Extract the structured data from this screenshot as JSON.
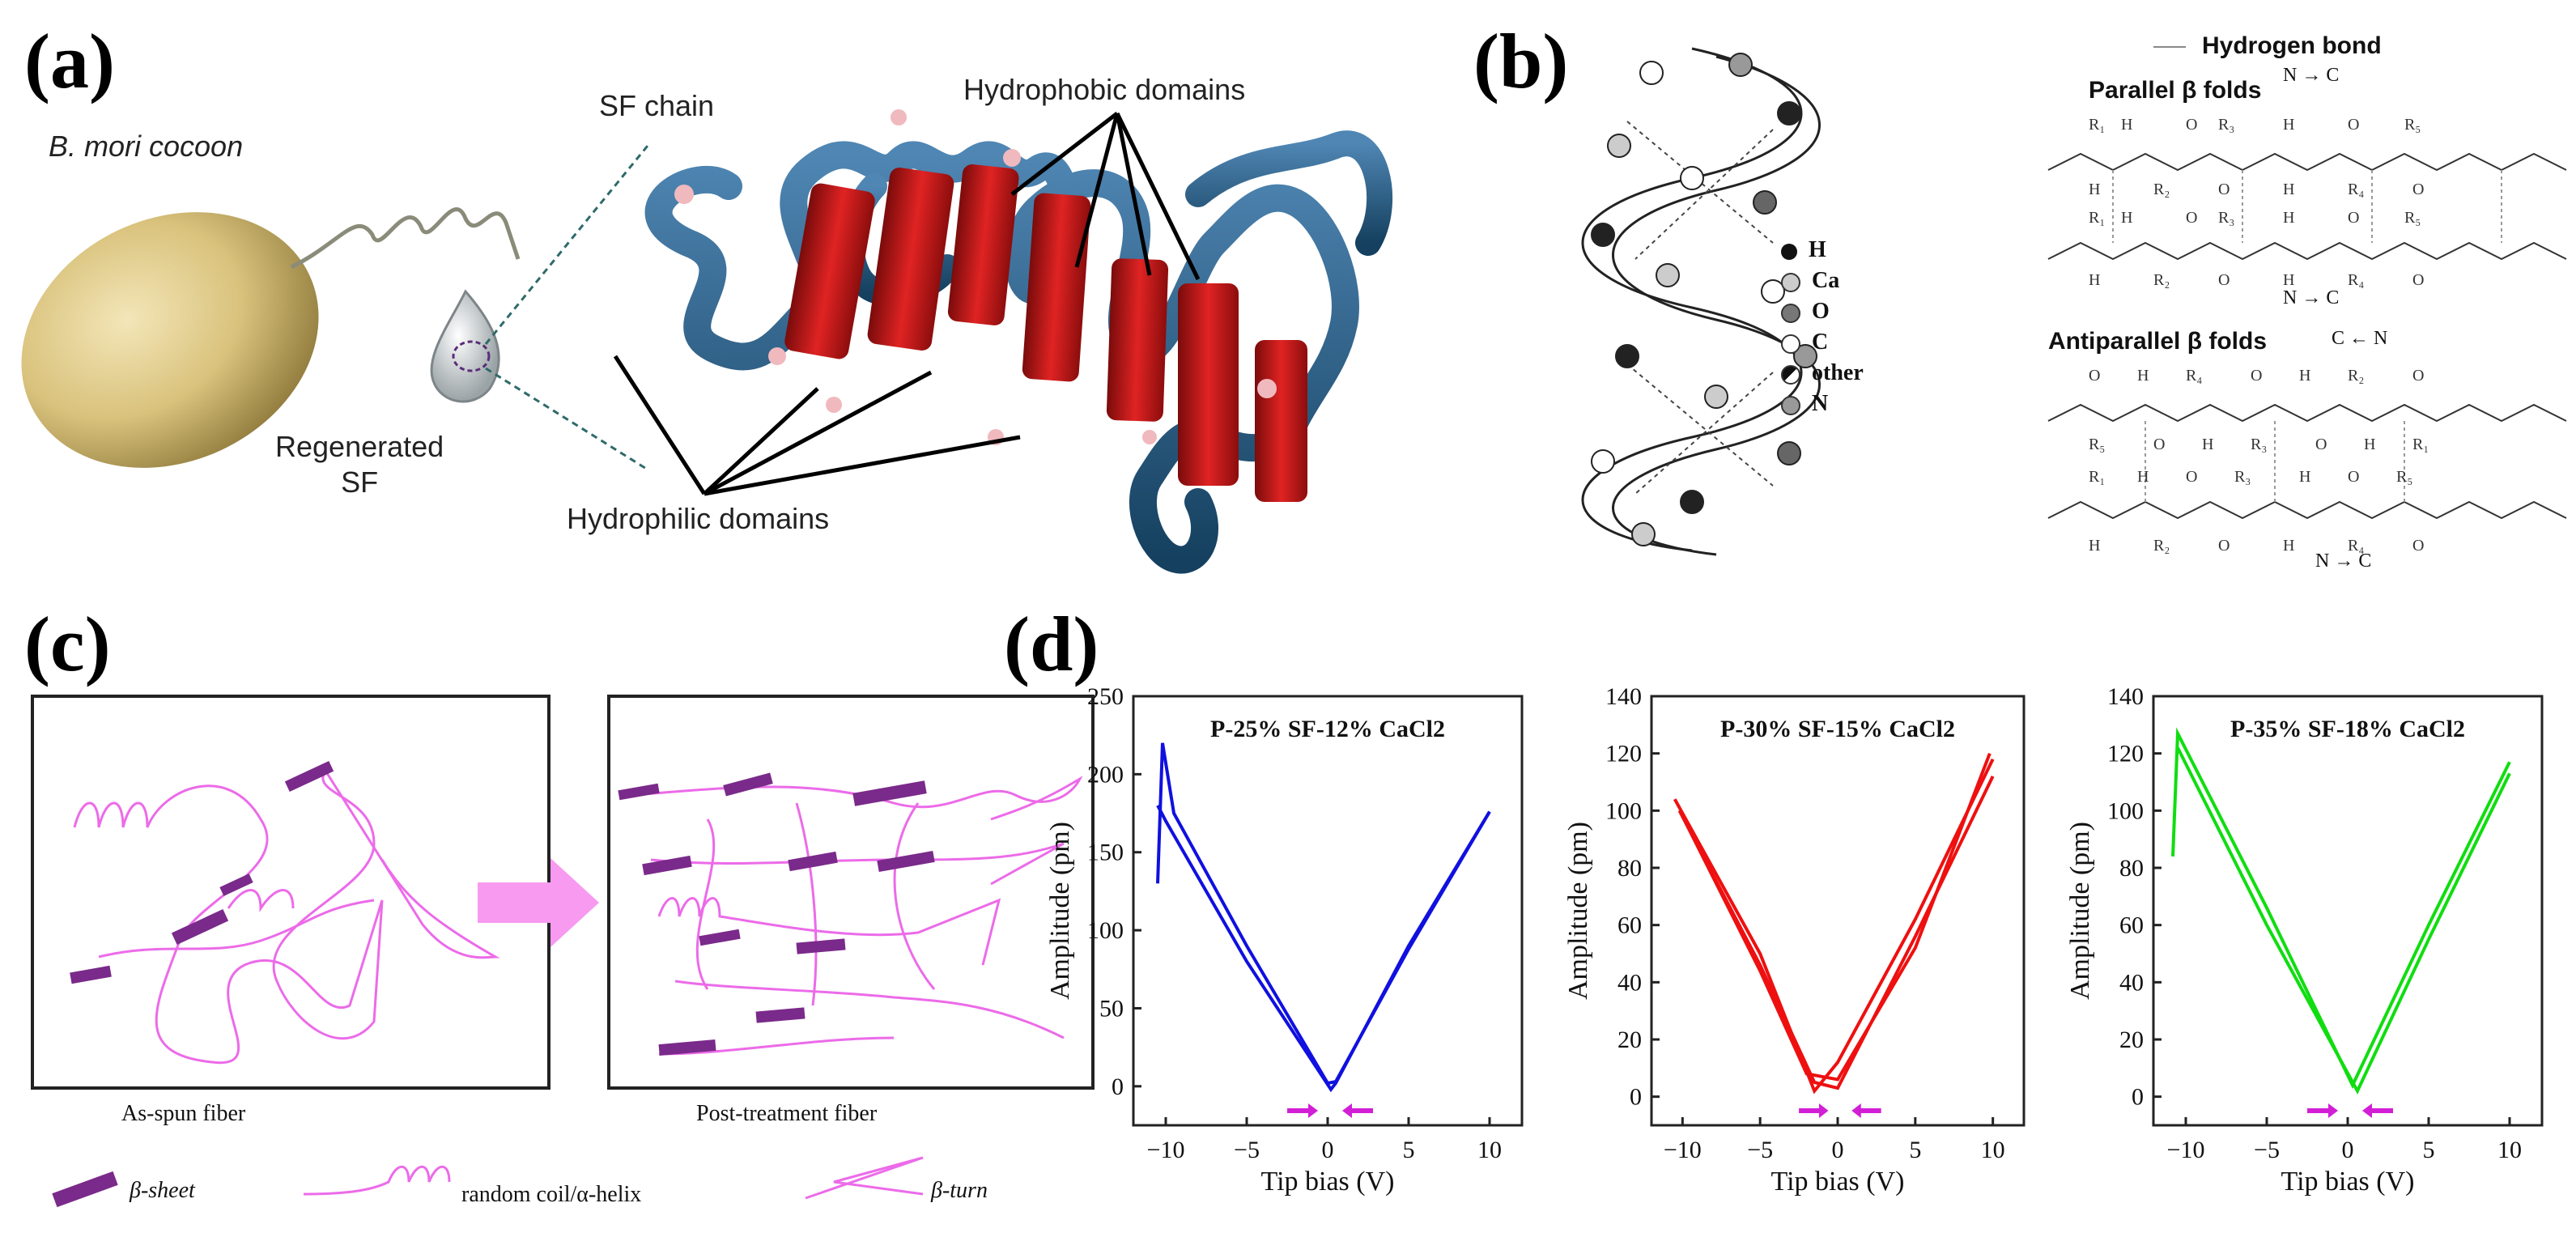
{
  "panels": {
    "a": {
      "label": "(a)",
      "cocoon_label": "B. mori cocoon",
      "sf_chain": "SF chain",
      "regenerated": [
        "Regenerated",
        "SF"
      ],
      "hydrophobic": "Hydrophobic domains",
      "hydrophilic": "Hydrophilic domains"
    },
    "b": {
      "label": "(b)",
      "legend": [
        "H",
        "Ca",
        "O",
        "C",
        "other",
        "N"
      ],
      "hydrogen_bond": "Hydrogen bond",
      "parallel": "Parallel β folds",
      "antiparallel": "Antiparallel β folds",
      "n_to_c": "N → C",
      "c_from_n": "C ← N"
    },
    "c": {
      "label": "(c)",
      "caption_left": "As-spun fiber",
      "caption_right": "Post-treatment fiber",
      "legend_sheet": "β-sheet",
      "legend_coil": "random coil/α-helix",
      "legend_turn": "β-turn"
    },
    "d": {
      "label": "(d)"
    }
  },
  "chart_data": [
    {
      "type": "line",
      "title": "P-25% SF-12% CaCl2",
      "xlabel": "Tip bias (V)",
      "ylabel": "Amplitude (pm)",
      "xlim": [
        -12,
        12
      ],
      "ylim": [
        -25,
        250
      ],
      "xticks": [
        -10,
        -5,
        0,
        5,
        10
      ],
      "yticks": [
        0,
        50,
        100,
        150,
        200,
        250
      ],
      "color": "#1010e0",
      "series": [
        {
          "x": [
            -10.5,
            -10.2,
            -9.5,
            -5,
            0,
            0.5,
            5,
            10
          ],
          "y": [
            130,
            220,
            175,
            90,
            2,
            3,
            88,
            176
          ]
        },
        {
          "x": [
            -10.5,
            -10,
            -5,
            0.2,
            0.5,
            5,
            10
          ],
          "y": [
            180,
            170,
            80,
            -2,
            2,
            90,
            176
          ]
        }
      ]
    },
    {
      "type": "line",
      "title": "P-30% SF-15% CaCl2",
      "xlabel": "Tip bias (V)",
      "ylabel": "Amplitude (pm)",
      "xlim": [
        -12,
        12
      ],
      "ylim": [
        -10,
        140
      ],
      "xticks": [
        -10,
        -5,
        0,
        5,
        10
      ],
      "yticks": [
        0,
        20,
        40,
        60,
        80,
        100,
        120,
        140
      ],
      "color": "#ee1010",
      "series": [
        {
          "x": [
            -10.5,
            -5,
            -1.5,
            0,
            5,
            10
          ],
          "y": [
            104,
            50,
            2,
            12,
            62,
            118
          ]
        },
        {
          "x": [
            -10.2,
            -5,
            -1.5,
            0,
            5,
            10
          ],
          "y": [
            100,
            46,
            5,
            3,
            56,
            112
          ]
        },
        {
          "x": [
            -10,
            -5,
            -2,
            0,
            5,
            9.8
          ],
          "y": [
            98,
            44,
            8,
            6,
            52,
            120
          ]
        }
      ]
    },
    {
      "type": "line",
      "title": "P-35% SF-18% CaCl2",
      "xlabel": "Tip bias (V)",
      "ylabel": "Amplitude (pm)",
      "xlim": [
        -12,
        12
      ],
      "ylim": [
        -10,
        140
      ],
      "xticks": [
        -10,
        -5,
        0,
        5,
        10
      ],
      "yticks": [
        0,
        20,
        40,
        60,
        80,
        100,
        120,
        140
      ],
      "color": "#10dd10",
      "series": [
        {
          "x": [
            -10.8,
            -10.5,
            -5,
            0.3,
            5,
            10
          ],
          "y": [
            84,
            127,
            66,
            4,
            60,
            117
          ]
        },
        {
          "x": [
            -10.5,
            -5,
            0.6,
            5,
            10
          ],
          "y": [
            122,
            60,
            2,
            55,
            113
          ]
        }
      ]
    }
  ]
}
